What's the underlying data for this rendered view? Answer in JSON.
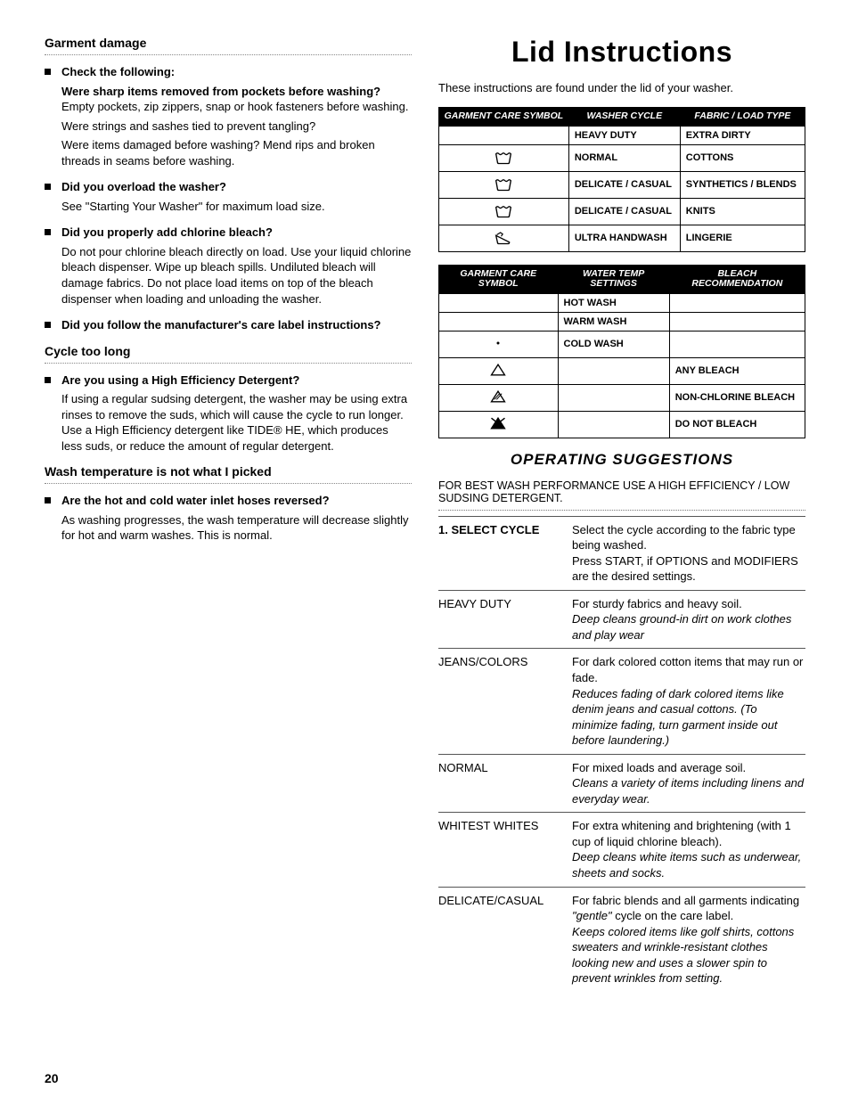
{
  "left": {
    "sections": [
      {
        "heading": "Garment damage",
        "items": [
          {
            "lead": "Check the following:",
            "paras": [
              "<b>Were sharp items removed from pockets before washing?</b> Empty pockets, zip zippers, snap or hook fasteners before washing.",
              "Were strings and sashes tied to prevent tangling?",
              "Were items damaged before washing? Mend rips and broken threads in seams before washing."
            ]
          },
          {
            "lead": "Did you overload the washer?",
            "paras": [
              "See \"Starting Your Washer\" for maximum load size."
            ]
          },
          {
            "lead": "Did you properly add chlorine bleach?",
            "paras": [
              "Do not pour chlorine bleach directly on load. Use your liquid chlorine bleach dispenser. Wipe up bleach spills. Undiluted bleach will damage fabrics. Do not place load items on top of the bleach dispenser when loading and unloading the washer."
            ]
          },
          {
            "lead": "Did you follow the manufacturer's care label instructions?",
            "paras": []
          }
        ]
      },
      {
        "heading": "Cycle too long",
        "items": [
          {
            "lead": "Are you using a High Efficiency Detergent?",
            "paras": [
              "If using a regular sudsing detergent, the washer may be using extra rinses to remove the suds, which will cause the cycle to run longer. Use a High Efficiency detergent like TIDE® HE, which produces less suds, or reduce the amount of regular detergent."
            ]
          }
        ]
      },
      {
        "heading": "Wash temperature is not what I picked",
        "items": [
          {
            "lead": "Are the hot and cold water inlet hoses reversed?",
            "paras": [
              "As washing progresses, the wash temperature will decrease slightly for hot and warm washes. This is normal."
            ]
          }
        ]
      }
    ]
  },
  "right": {
    "title": "Lid Instructions",
    "intro": "These instructions are found under the lid of your washer.",
    "table1": {
      "headers": [
        "GARMENT CARE SYMBOL",
        "WASHER CYCLE",
        "FABRIC / LOAD TYPE"
      ],
      "rows": [
        {
          "sym": "",
          "c2": "HEAVY DUTY",
          "c3": "EXTRA DIRTY"
        },
        {
          "sym": "tub",
          "c2": "NORMAL",
          "c3": "COTTONS"
        },
        {
          "sym": "tub",
          "c2": "DELICATE / CASUAL",
          "c3": "SYNTHETICS / BLENDS"
        },
        {
          "sym": "tub",
          "c2": "DELICATE / CASUAL",
          "c3": "KNITS"
        },
        {
          "sym": "hand",
          "c2": "ULTRA HANDWASH",
          "c3": "LINGERIE"
        }
      ]
    },
    "table2": {
      "headers": [
        "GARMENT CARE SYMBOL",
        "WATER  TEMP SETTINGS",
        "BLEACH RECOMMENDATION"
      ],
      "rows": [
        {
          "sym": "",
          "c2": "HOT WASH",
          "c3": ""
        },
        {
          "sym": "",
          "c2": "WARM WASH",
          "c3": ""
        },
        {
          "sym": "dot",
          "c2": "COLD WASH",
          "c3": ""
        },
        {
          "sym": "tri",
          "c2": "",
          "c3": "ANY BLEACH"
        },
        {
          "sym": "tri-cl",
          "c2": "",
          "c3": "NON-CHLORINE BLEACH"
        },
        {
          "sym": "tri-x",
          "c2": "",
          "c3": "DO NOT BLEACH"
        }
      ]
    },
    "subTitle": "OPERATING SUGGESTIONS",
    "opIntro": "FOR BEST WASH PERFORMANCE USE A HIGH EFFICIENCY / LOW SUDSING DETERGENT.",
    "opRows": [
      {
        "label": "1. SELECT CYCLE",
        "bold": true,
        "desc": "Select the cycle according to the fabric type being washed.<br>Press START, if OPTIONS and MODIFIERS are the desired settings."
      },
      {
        "label": "HEAVY DUTY",
        "desc": "For sturdy fabrics and heavy soil.<br><em>Deep cleans ground-in dirt on work clothes and play wear</em>"
      },
      {
        "label": "JEANS/COLORS",
        "desc": "For dark colored cotton items that may run or fade.<br><em>Reduces fading of dark colored items like denim jeans and casual cottons. (To minimize fading, turn garment inside out before laundering.)</em>"
      },
      {
        "label": "NORMAL",
        "desc": "For mixed loads and average soil.<br><em>Cleans a variety of items including linens and everyday wear.</em>"
      },
      {
        "label": "WHITEST WHITES",
        "desc": "For extra whitening and brightening (with 1 cup of liquid chlorine bleach).<br><em>Deep cleans white items such as underwear, sheets and socks.</em>"
      },
      {
        "label": "DELICATE/CASUAL",
        "desc": "For fabric blends and all garments indicating <em>\"gentle\"</em> cycle on the care label.<br><em>Keeps colored items like golf shirts, cottons sweaters and wrinkle-resistant clothes looking new and uses a slower spin to prevent wrinkles from setting.</em>"
      }
    ]
  },
  "pageNumber": "20"
}
